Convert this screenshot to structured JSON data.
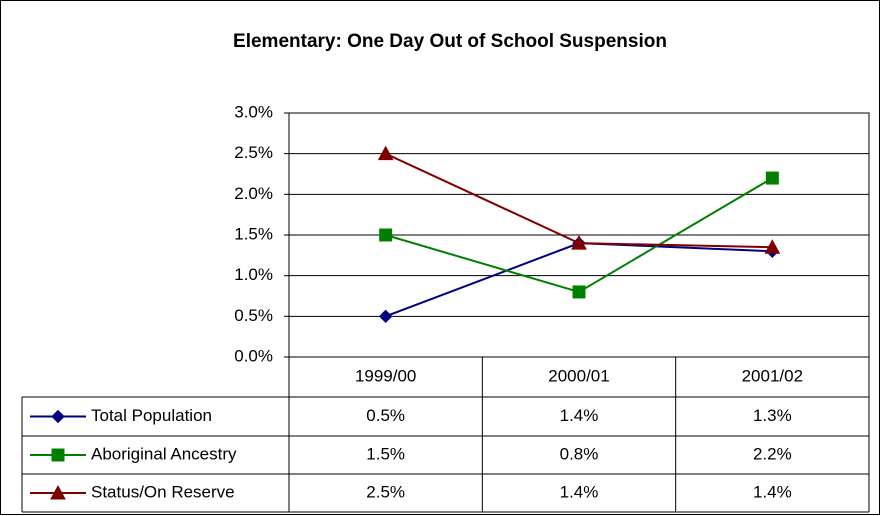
{
  "chart_data": {
    "type": "line",
    "title": "Elementary: One Day Out of School Suspension",
    "categories": [
      "1999/00",
      "2000/01",
      "2001/02"
    ],
    "series": [
      {
        "name": "Total Population",
        "color": "#000080",
        "marker": "diamond",
        "values": [
          0.5,
          1.4,
          1.3
        ],
        "value_labels": [
          "0.5%",
          "1.4%",
          "1.3%"
        ]
      },
      {
        "name": "Aboriginal Ancestry",
        "color": "#008000",
        "marker": "square",
        "values": [
          1.5,
          0.8,
          2.2
        ],
        "value_labels": [
          "1.5%",
          "0.8%",
          "2.2%"
        ]
      },
      {
        "name": "Status/On Reserve",
        "color": "#800000",
        "marker": "triangle",
        "values": [
          2.5,
          1.4,
          1.35
        ],
        "value_labels": [
          "2.5%",
          "1.4%",
          "1.4%"
        ]
      }
    ],
    "ylim": [
      0,
      3
    ],
    "yticks": [
      {
        "value": 0,
        "label": "0.0%"
      },
      {
        "value": 0.5,
        "label": "0.5%"
      },
      {
        "value": 1,
        "label": "1.0%"
      },
      {
        "value": 1.5,
        "label": "1.5%"
      },
      {
        "value": 2,
        "label": "2.0%"
      },
      {
        "value": 2.5,
        "label": "2.5%"
      },
      {
        "value": 3,
        "label": "3.0%"
      }
    ],
    "grid": true
  }
}
